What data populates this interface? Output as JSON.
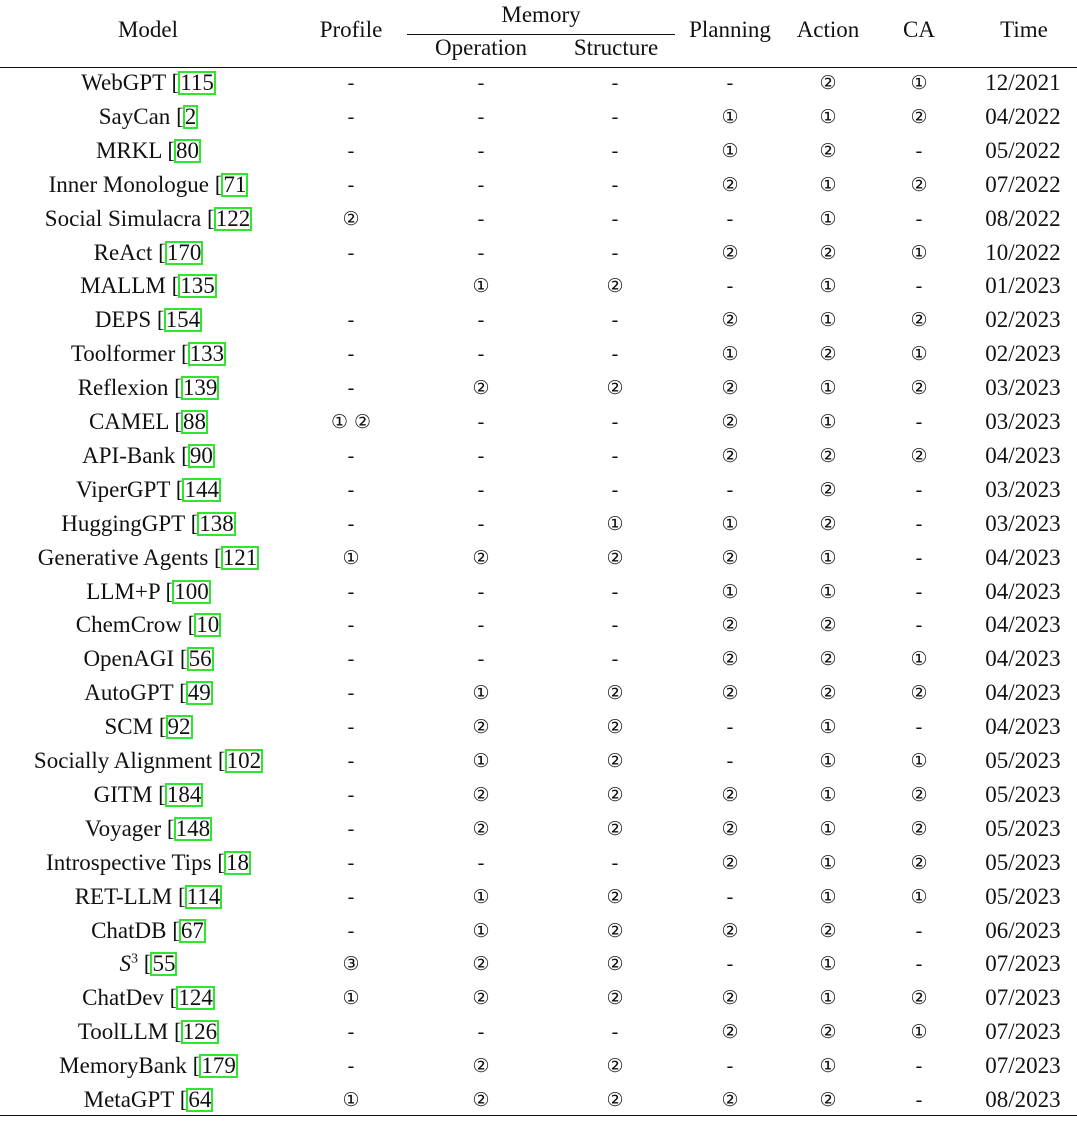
{
  "table": {
    "headers": {
      "model": "Model",
      "profile": "Profile",
      "memory": "Memory",
      "operation": "Operation",
      "structure": "Structure",
      "planning": "Planning",
      "action": "Action",
      "ca": "CA",
      "time": "Time"
    },
    "reference_box_color": "#2ee62e",
    "rows": [
      {
        "name": "WebGPT",
        "ref": "115",
        "profile": "-",
        "operation": "-",
        "structure": "-",
        "planning": "-",
        "action": "②",
        "ca": "①",
        "time": "12/2021"
      },
      {
        "name": "SayCan",
        "ref": "2",
        "profile": "-",
        "operation": "-",
        "structure": "-",
        "planning": "①",
        "action": "①",
        "ca": "②",
        "time": "04/2022"
      },
      {
        "name": "MRKL",
        "ref": "80",
        "profile": "-",
        "operation": "-",
        "structure": "-",
        "planning": "①",
        "action": "②",
        "ca": "-",
        "time": "05/2022"
      },
      {
        "name": "Inner Monologue",
        "ref": "71",
        "profile": "-",
        "operation": "-",
        "structure": "-",
        "planning": "②",
        "action": "①",
        "ca": "②",
        "time": "07/2022"
      },
      {
        "name": "Social Simulacra",
        "ref": "122",
        "profile": "②",
        "operation": "-",
        "structure": "-",
        "planning": "-",
        "action": "①",
        "ca": "-",
        "time": "08/2022"
      },
      {
        "name": "ReAct",
        "ref": "170",
        "profile": "-",
        "operation": "-",
        "structure": "-",
        "planning": "②",
        "action": "②",
        "ca": "①",
        "time": "10/2022"
      },
      {
        "name": "MALLM",
        "ref": "135",
        "profile": "",
        "operation": "①",
        "structure": "②",
        "planning": "-",
        "action": "①",
        "ca": "-",
        "time": "01/2023"
      },
      {
        "name": "DEPS",
        "ref": "154",
        "profile": "-",
        "operation": "-",
        "structure": "-",
        "planning": "②",
        "action": "①",
        "ca": "②",
        "time": "02/2023"
      },
      {
        "name": "Toolformer",
        "ref": "133",
        "profile": "-",
        "operation": "-",
        "structure": "-",
        "planning": "①",
        "action": "②",
        "ca": "①",
        "time": "02/2023"
      },
      {
        "name": "Reflexion",
        "ref": "139",
        "profile": "-",
        "operation": "②",
        "structure": "②",
        "planning": "②",
        "action": "①",
        "ca": "②",
        "time": "03/2023"
      },
      {
        "name": "CAMEL",
        "ref": "88",
        "profile": "① ②",
        "operation": "-",
        "structure": "-",
        "planning": "②",
        "action": "①",
        "ca": "-",
        "time": "03/2023"
      },
      {
        "name": "API-Bank",
        "ref": "90",
        "profile": "-",
        "operation": "-",
        "structure": "-",
        "planning": "②",
        "action": "②",
        "ca": "②",
        "time": "04/2023"
      },
      {
        "name": "ViperGPT",
        "ref": "144",
        "profile": "-",
        "operation": "-",
        "structure": "-",
        "planning": "-",
        "action": "②",
        "ca": "-",
        "time": "03/2023"
      },
      {
        "name": "HuggingGPT",
        "ref": "138",
        "profile": "-",
        "operation": "-",
        "structure": "①",
        "planning": "①",
        "action": "②",
        "ca": "-",
        "time": "03/2023"
      },
      {
        "name": "Generative Agents",
        "ref": "121",
        "profile": "①",
        "operation": "②",
        "structure": "②",
        "planning": "②",
        "action": "①",
        "ca": "-",
        "time": "04/2023"
      },
      {
        "name": "LLM+P",
        "ref": "100",
        "profile": "-",
        "operation": "-",
        "structure": "-",
        "planning": "①",
        "action": "①",
        "ca": "-",
        "time": "04/2023"
      },
      {
        "name": "ChemCrow",
        "ref": "10",
        "profile": "-",
        "operation": "-",
        "structure": "-",
        "planning": "②",
        "action": "②",
        "ca": "-",
        "time": "04/2023"
      },
      {
        "name": "OpenAGI",
        "ref": "56",
        "profile": "-",
        "operation": "-",
        "structure": "-",
        "planning": "②",
        "action": "②",
        "ca": "①",
        "time": "04/2023"
      },
      {
        "name": "AutoGPT",
        "ref": "49",
        "profile": "-",
        "operation": "①",
        "structure": "②",
        "planning": "②",
        "action": "②",
        "ca": "②",
        "time": "04/2023"
      },
      {
        "name": "SCM",
        "ref": "92",
        "profile": "-",
        "operation": "②",
        "structure": "②",
        "planning": "-",
        "action": "①",
        "ca": "-",
        "time": "04/2023"
      },
      {
        "name": "Socially Alignment",
        "ref": "102",
        "profile": "-",
        "operation": "①",
        "structure": "②",
        "planning": "-",
        "action": "①",
        "ca": "①",
        "time": "05/2023"
      },
      {
        "name": "GITM",
        "ref": "184",
        "profile": "-",
        "operation": "②",
        "structure": "②",
        "planning": "②",
        "action": "①",
        "ca": "②",
        "time": "05/2023"
      },
      {
        "name": "Voyager",
        "ref": "148",
        "profile": "-",
        "operation": "②",
        "structure": "②",
        "planning": "②",
        "action": "①",
        "ca": "②",
        "time": "05/2023"
      },
      {
        "name": "Introspective Tips",
        "ref": "18",
        "profile": "-",
        "operation": "-",
        "structure": "-",
        "planning": "②",
        "action": "①",
        "ca": "②",
        "time": "05/2023"
      },
      {
        "name": "RET-LLM",
        "ref": "114",
        "profile": "-",
        "operation": "①",
        "structure": "②",
        "planning": "-",
        "action": "①",
        "ca": "①",
        "time": "05/2023"
      },
      {
        "name": "ChatDB",
        "ref": "67",
        "profile": "-",
        "operation": "①",
        "structure": "②",
        "planning": "②",
        "action": "②",
        "ca": "-",
        "time": "06/2023"
      },
      {
        "name": "S",
        "sup": "3",
        "ref": "55",
        "profile": "③",
        "operation": "②",
        "structure": "②",
        "planning": "-",
        "action": "①",
        "ca": "-",
        "time": "07/2023"
      },
      {
        "name": "ChatDev",
        "ref": "124",
        "profile": "①",
        "operation": "②",
        "structure": "②",
        "planning": "②",
        "action": "①",
        "ca": "②",
        "time": "07/2023"
      },
      {
        "name": "ToolLLM",
        "ref": "126",
        "profile": "-",
        "operation": "-",
        "structure": "-",
        "planning": "②",
        "action": "②",
        "ca": "①",
        "time": "07/2023"
      },
      {
        "name": "MemoryBank",
        "ref": "179",
        "profile": "-",
        "operation": "②",
        "structure": "②",
        "planning": "-",
        "action": "①",
        "ca": "-",
        "time": "07/2023"
      },
      {
        "name": "MetaGPT",
        "ref": "64",
        "profile": "①",
        "operation": "②",
        "structure": "②",
        "planning": "②",
        "action": "②",
        "ca": "-",
        "time": "08/2023"
      }
    ]
  }
}
